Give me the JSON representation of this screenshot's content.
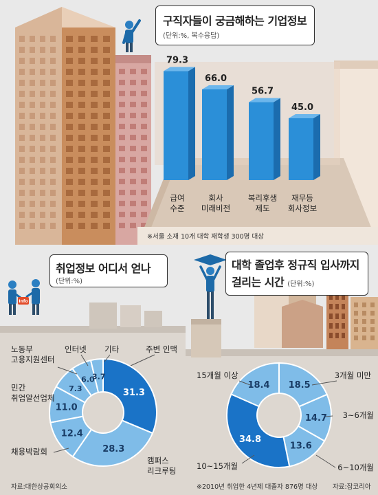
{
  "top_chart": {
    "title": "구직자들이 궁금해하는 기업정보",
    "unit": "(단위:%, 복수응답)",
    "note": "※서울 소재 10개 대학 재학생 300명 대상",
    "colors": {
      "bar": "#2b8fd8"
    }
  },
  "left_chart": {
    "title": "취업정보 어디서 얻나",
    "unit": "(단위:%)",
    "source": "자료:대한상공회의소",
    "sign_text": "Info",
    "colors": {
      "dark": "#1a73c7",
      "light": "#7fbce8"
    }
  },
  "right_chart": {
    "title_line1": "대학 졸업후 정규직 입사까지",
    "title_line2": "걸리는 시간",
    "unit": "(단위:%)",
    "note": "※2010년 취업한 4년제 대졸자 876명 대상",
    "source": "자료:잡코리아",
    "colors": {
      "dark": "#1a73c7",
      "light": "#7fbce8"
    }
  },
  "chart_data": [
    {
      "type": "bar",
      "title": "구직자들이 궁금해하는 기업정보",
      "unit": "(단위:%, 복수응답)",
      "categories": [
        [
          "급여",
          "수준"
        ],
        [
          "회사",
          "미래비전"
        ],
        [
          "복리후생",
          "제도"
        ],
        [
          "재무등",
          "회사정보"
        ]
      ],
      "values": [
        79.3,
        66.0,
        56.7,
        45.0
      ],
      "value_labels": [
        "79.3",
        "66.0",
        "56.7",
        "45.0"
      ]
    },
    {
      "type": "pie",
      "title": "취업정보 어디서 얻나",
      "unit": "(단위:%)",
      "slices": [
        {
          "label": "주변 인맥",
          "value": 31.3,
          "value_label": "31.3"
        },
        {
          "label": "캠퍼스 리크루팅",
          "value": 28.3,
          "value_label": "28.3"
        },
        {
          "label": "채용박람회",
          "value": 12.4,
          "value_label": "12.4"
        },
        {
          "label": "민간 취업알선업체",
          "value": 11.0,
          "value_label": "11.0"
        },
        {
          "label": "노동부 고용지원센터",
          "value": 7.3,
          "value_label": "7.3"
        },
        {
          "label": "인터넷",
          "value": 6.0,
          "value_label": "6.0"
        },
        {
          "label": "기타",
          "value": 3.7,
          "value_label": "3.7"
        }
      ]
    },
    {
      "type": "pie",
      "title": "대학 졸업후 정규직 입사까지 걸리는 시간",
      "unit": "(단위:%)",
      "slices": [
        {
          "label": "3개월 미만",
          "value": 18.5,
          "value_label": "18.5"
        },
        {
          "label": "3~6개월",
          "value": 14.7,
          "value_label": "14.7"
        },
        {
          "label": "6~10개월",
          "value": 13.6,
          "value_label": "13.6"
        },
        {
          "label": "10~15개월",
          "value": 34.8,
          "value_label": "34.8"
        },
        {
          "label": "15개월 이상",
          "value": 18.4,
          "value_label": "18.4"
        }
      ]
    }
  ]
}
